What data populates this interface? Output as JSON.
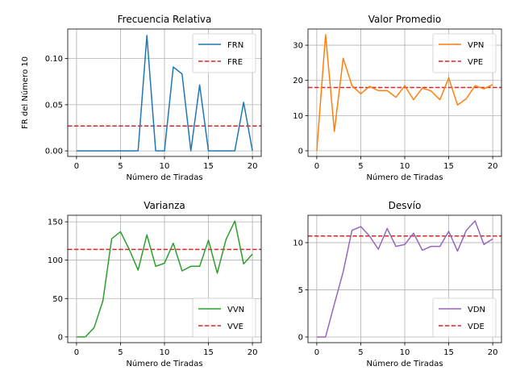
{
  "chart_data": [
    {
      "type": "line",
      "title": "Frecuencia Relativa",
      "xlabel": "Número de Tiradas",
      "ylabel": "FR del Número 10",
      "xlim": [
        -1,
        21
      ],
      "ylim": [
        -0.006,
        0.132
      ],
      "xticks": [
        0,
        5,
        10,
        15,
        20
      ],
      "yticks": [
        0.0,
        0.05,
        0.1
      ],
      "ytick_labels": [
        "0.00",
        "0.05",
        "0.10"
      ],
      "grid": true,
      "legend_placement": "top-right",
      "x": [
        0,
        1,
        2,
        3,
        4,
        5,
        6,
        7,
        8,
        9,
        10,
        11,
        12,
        13,
        14,
        15,
        16,
        17,
        18,
        19,
        20
      ],
      "series": [
        {
          "name": "FRN",
          "color": "#1f77b4",
          "style": "solid",
          "values": [
            0,
            0,
            0,
            0,
            0,
            0,
            0,
            0,
            0.125,
            0,
            0,
            0.0909,
            0.0833,
            0,
            0.0714,
            0,
            0,
            0,
            0,
            0.0526,
            0
          ]
        }
      ],
      "hlines": [
        {
          "name": "FRE",
          "color": "#d62728",
          "style": "dashed",
          "value": 0.027
        }
      ]
    },
    {
      "type": "line",
      "title": "Valor Promedio",
      "xlabel": "Número de Tiradas",
      "ylabel": "",
      "xlim": [
        -1,
        21
      ],
      "ylim": [
        -1.6,
        34.6
      ],
      "xticks": [
        0,
        5,
        10,
        15,
        20
      ],
      "yticks": [
        0,
        10,
        20,
        30
      ],
      "ytick_labels": [
        "0",
        "10",
        "20",
        "30"
      ],
      "grid": true,
      "legend_placement": "top-right",
      "x": [
        0,
        1,
        2,
        3,
        4,
        5,
        6,
        7,
        8,
        9,
        10,
        11,
        12,
        13,
        14,
        15,
        16,
        17,
        18,
        19,
        20
      ],
      "series": [
        {
          "name": "VPN",
          "color": "#ff7f0e",
          "style": "solid",
          "values": [
            0,
            33,
            5.5,
            26.3,
            18.5,
            16.2,
            18.3,
            17.1,
            17.1,
            15.2,
            18.5,
            14.5,
            17.8,
            17.0,
            14.5,
            20.7,
            13.0,
            14.8,
            18.5,
            17.6,
            18.8
          ]
        }
      ],
      "hlines": [
        {
          "name": "VPE",
          "color": "#d62728",
          "style": "dashed",
          "value": 18.0
        }
      ]
    },
    {
      "type": "line",
      "title": "Varianza",
      "xlabel": "Número de Tiradas",
      "ylabel": "",
      "xlim": [
        -1,
        21
      ],
      "ylim": [
        -7.5,
        158.5
      ],
      "xticks": [
        0,
        5,
        10,
        15,
        20
      ],
      "yticks": [
        0,
        50,
        100,
        150
      ],
      "ytick_labels": [
        "0",
        "50",
        "100",
        "150"
      ],
      "grid": true,
      "legend_placement": "bottom-right",
      "x": [
        0,
        1,
        2,
        3,
        4,
        5,
        6,
        7,
        8,
        9,
        10,
        11,
        12,
        13,
        14,
        15,
        16,
        17,
        18,
        19,
        20
      ],
      "series": [
        {
          "name": "VVN",
          "color": "#2ca02c",
          "style": "solid",
          "values": [
            0,
            0,
            12,
            47,
            128,
            137,
            114,
            87,
            133,
            92,
            96,
            122,
            86,
            92,
            92,
            126,
            83,
            127,
            151,
            95,
            108
          ]
        }
      ],
      "hlines": [
        {
          "name": "VVE",
          "color": "#d62728",
          "style": "dashed",
          "value": 114
        }
      ]
    },
    {
      "type": "line",
      "title": "Desvío",
      "xlabel": "Número de Tiradas",
      "ylabel": "",
      "xlim": [
        -1,
        21
      ],
      "ylim": [
        -0.6,
        12.9
      ],
      "xticks": [
        0,
        5,
        10,
        15,
        20
      ],
      "yticks": [
        0,
        5,
        10
      ],
      "ytick_labels": [
        "0",
        "5",
        "10"
      ],
      "grid": true,
      "legend_placement": "bottom-right",
      "x": [
        0,
        1,
        2,
        3,
        4,
        5,
        6,
        7,
        8,
        9,
        10,
        11,
        12,
        13,
        14,
        15,
        16,
        17,
        18,
        19,
        20
      ],
      "series": [
        {
          "name": "VDN",
          "color": "#9467bd",
          "style": "solid",
          "values": [
            0,
            0,
            3.5,
            6.9,
            11.3,
            11.7,
            10.7,
            9.3,
            11.5,
            9.6,
            9.8,
            11.0,
            9.2,
            9.6,
            9.6,
            11.2,
            9.1,
            11.3,
            12.3,
            9.8,
            10.4
          ]
        }
      ],
      "hlines": [
        {
          "name": "VDE",
          "color": "#d62728",
          "style": "dashed",
          "value": 10.7
        }
      ]
    }
  ]
}
